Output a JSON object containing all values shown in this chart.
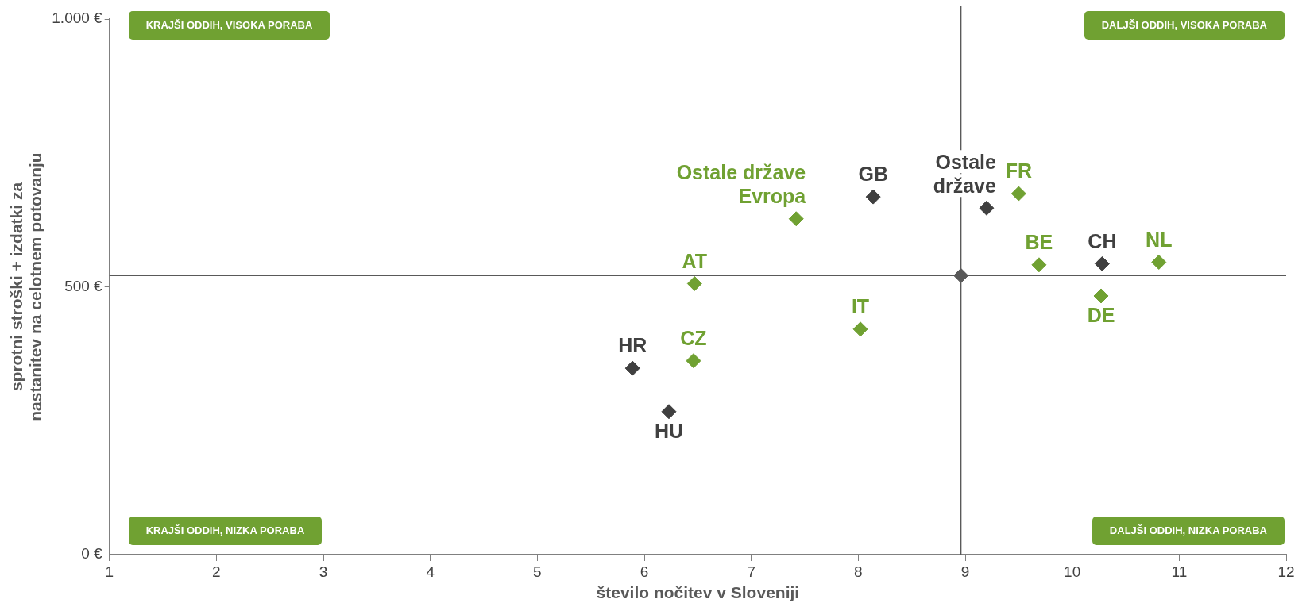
{
  "chart_data": {
    "type": "scatter",
    "xlabel": "število nočitev v Sloveniji",
    "ylabel": "sprotni stroški + izdatki za nastanitev na celotnem potovanju",
    "xlim": [
      1,
      12
    ],
    "ylim": [
      0,
      1000
    ],
    "xticks": [
      1,
      2,
      3,
      4,
      5,
      6,
      7,
      8,
      9,
      10,
      11,
      12
    ],
    "yticks": [
      {
        "value": 0,
        "label": "0 €"
      },
      {
        "value": 500,
        "label": "500 €"
      },
      {
        "value": 1000,
        "label": "1.000 €"
      }
    ],
    "grid": false,
    "marker": "diamond",
    "series": [
      {
        "name": "AT",
        "color": "#70a132",
        "x": [
          6.47
        ],
        "values": [
          506
        ]
      },
      {
        "name": "Ostale države Evropa",
        "color": "#70a132",
        "x": [
          7.42
        ],
        "values": [
          627
        ]
      },
      {
        "name": "GB",
        "color": "#404040",
        "x": [
          8.14
        ],
        "values": [
          668
        ]
      },
      {
        "name": "Ostale države",
        "color": "#404040",
        "x": [
          9.2
        ],
        "values": [
          647
        ]
      },
      {
        "name": "FR",
        "color": "#70a132",
        "x": [
          9.5
        ],
        "values": [
          674
        ]
      },
      {
        "name": "BE",
        "color": "#70a132",
        "x": [
          9.69
        ],
        "values": [
          541
        ]
      },
      {
        "name": "CH",
        "color": "#404040",
        "x": [
          10.28
        ],
        "values": [
          543
        ]
      },
      {
        "name": "NL",
        "color": "#70a132",
        "x": [
          10.81
        ],
        "values": [
          546
        ]
      },
      {
        "name": "DE",
        "color": "#70a132",
        "x": [
          10.27
        ],
        "values": [
          483
        ]
      },
      {
        "name": "IT",
        "color": "#70a132",
        "x": [
          8.02
        ],
        "values": [
          421
        ]
      },
      {
        "name": "CZ",
        "color": "#70a132",
        "x": [
          6.46
        ],
        "values": [
          362
        ]
      },
      {
        "name": "HR",
        "color": "#404040",
        "x": [
          5.89
        ],
        "values": [
          348
        ]
      },
      {
        "name": "HU",
        "color": "#404040",
        "x": [
          6.23
        ],
        "values": [
          267
        ]
      },
      {
        "color": "#595959",
        "x": [
          8.96
        ],
        "values": [
          521
        ]
      }
    ],
    "ref_lines": [
      {
        "axis": "x",
        "value": 8.96,
        "color": "#595959"
      },
      {
        "axis": "y",
        "value": 521,
        "color": "#595959"
      }
    ],
    "annotations": [
      "KRAJŠI ODDIH, VISOKA PORABA",
      "DALJŠI ODDIH, VISOKA PORABA",
      "KRAJŠI ODDIH, NIZKA PORABA",
      "DALJŠI ODDIH, NIZKA PORABA"
    ]
  }
}
